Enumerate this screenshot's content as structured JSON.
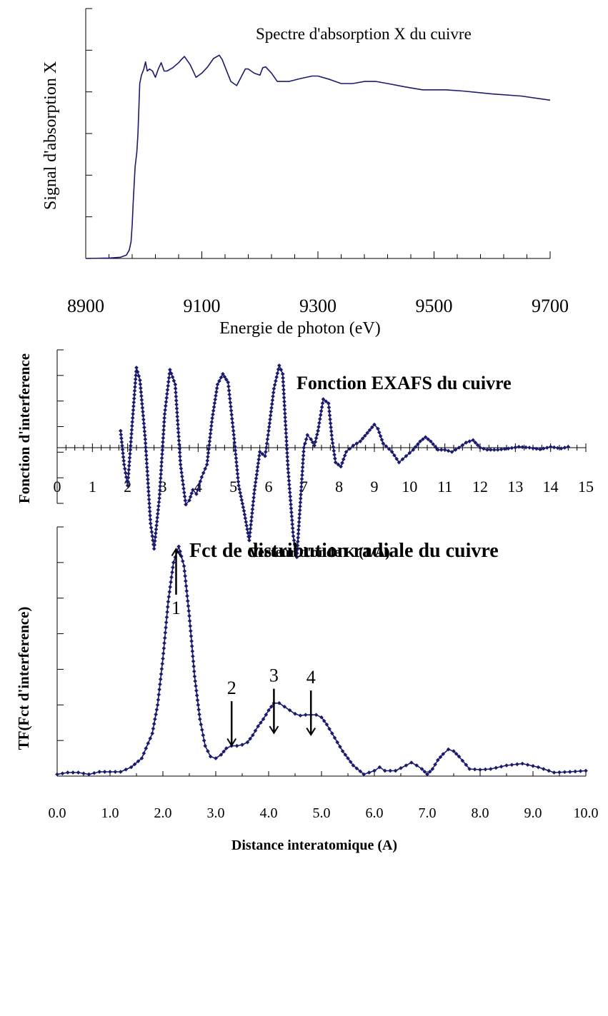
{
  "chart_data": [
    {
      "type": "line",
      "title": "Spectre d'absorption X du cuivre",
      "xlabel": "Energie de photon (eV)",
      "ylabel": "Signal d'absorption X",
      "xlim": [
        8900,
        9700
      ],
      "ylim": [
        0,
        6
      ],
      "x_ticks": [
        "8900",
        "9100",
        "9300",
        "9500",
        "9700"
      ],
      "grid": false,
      "markers": false,
      "color": "#1a1a6e",
      "series": [
        {
          "x": [
            8900,
            8940,
            8960,
            8970,
            8975,
            8978,
            8980,
            8982,
            8985,
            8988,
            8990,
            8993,
            8996,
            9000,
            9003,
            9006,
            9010,
            9015,
            9020,
            9025,
            9030,
            9035,
            9040,
            9050,
            9060,
            9065,
            9070,
            9080,
            9090,
            9100,
            9110,
            9120,
            9130,
            9135,
            9140,
            9150,
            9160,
            9170,
            9175,
            9180,
            9190,
            9200,
            9205,
            9210,
            9220,
            9230,
            9250,
            9270,
            9290,
            9300,
            9320,
            9340,
            9360,
            9380,
            9400,
            9420,
            9450,
            9480,
            9500,
            9520,
            9550,
            9600,
            9650,
            9700
          ],
          "y": [
            0.0,
            0.01,
            0.03,
            0.08,
            0.2,
            0.4,
            0.8,
            1.4,
            2.2,
            2.55,
            3.0,
            4.2,
            4.4,
            4.55,
            4.72,
            4.5,
            4.55,
            4.5,
            4.35,
            4.55,
            4.7,
            4.5,
            4.5,
            4.58,
            4.7,
            4.78,
            4.85,
            4.65,
            4.35,
            4.45,
            4.6,
            4.8,
            4.88,
            4.78,
            4.6,
            4.25,
            4.15,
            4.42,
            4.55,
            4.55,
            4.45,
            4.4,
            4.58,
            4.6,
            4.45,
            4.25,
            4.25,
            4.32,
            4.38,
            4.38,
            4.3,
            4.2,
            4.2,
            4.25,
            4.25,
            4.2,
            4.12,
            4.05,
            4.05,
            4.05,
            4.02,
            3.95,
            3.9,
            3.8
          ]
        }
      ]
    },
    {
      "type": "line",
      "title": "Fonction EXAFS du cuivre",
      "xlabel": "Vecteur d'onde K (1/A)",
      "ylabel": "Fonction d'interference",
      "xlim": [
        0,
        15
      ],
      "ylim": [
        -3,
        3
      ],
      "x_ticks": [
        "0",
        "1",
        "2",
        "3",
        "4",
        "5",
        "6",
        "7",
        "8",
        "9",
        "10",
        "11",
        "12",
        "13",
        "14",
        "15"
      ],
      "grid": false,
      "markers": true,
      "color": "#1a1a6e",
      "series": [
        {
          "x": [
            1.8,
            1.9,
            2.0,
            2.15,
            2.25,
            2.35,
            2.5,
            2.65,
            2.75,
            2.9,
            3.05,
            3.2,
            3.35,
            3.5,
            3.65,
            3.75,
            3.85,
            3.95,
            4.1,
            4.25,
            4.4,
            4.55,
            4.7,
            4.85,
            5.0,
            5.15,
            5.3,
            5.45,
            5.6,
            5.75,
            5.9,
            6.0,
            6.15,
            6.3,
            6.4,
            6.55,
            6.7,
            6.8,
            6.9,
            7.0,
            7.1,
            7.2,
            7.3,
            7.4,
            7.55,
            7.7,
            7.8,
            7.9,
            8.05,
            8.2,
            8.4,
            8.6,
            8.8,
            9.0,
            9.1,
            9.25,
            9.5,
            9.7,
            9.9,
            10.1,
            10.3,
            10.45,
            10.6,
            10.8,
            11.0,
            11.2,
            11.4,
            11.6,
            11.8,
            12.0,
            12.2,
            12.5,
            12.8,
            13.1,
            13.4,
            13.7,
            14.0,
            14.3,
            14.5
          ],
          "y": [
            0.4,
            -0.4,
            -0.9,
            0.8,
            1.9,
            1.6,
            0.2,
            -1.8,
            -2.4,
            -1.2,
            0.8,
            1.85,
            1.5,
            -0.4,
            -1.35,
            -1.25,
            -1.0,
            -1.1,
            -0.7,
            -0.4,
            0.7,
            1.5,
            1.75,
            1.55,
            0.4,
            -0.9,
            -1.5,
            -2.2,
            -1.0,
            -0.1,
            -0.2,
            0.4,
            1.4,
            1.95,
            1.75,
            -0.5,
            -2.1,
            -2.6,
            -1.3,
            0.0,
            0.3,
            0.2,
            0.05,
            0.4,
            1.15,
            1.05,
            0.2,
            -0.35,
            -0.45,
            -0.1,
            0.05,
            0.15,
            0.35,
            0.55,
            0.45,
            0.1,
            -0.1,
            -0.35,
            -0.2,
            -0.05,
            0.15,
            0.25,
            0.15,
            -0.05,
            -0.05,
            -0.1,
            0.0,
            0.12,
            0.18,
            0.0,
            -0.05,
            -0.05,
            -0.02,
            0.02,
            0.0,
            -0.04,
            0.02,
            -0.02,
            0.02
          ]
        }
      ]
    },
    {
      "type": "line",
      "title": "Fct de distribution radiale du cuivre",
      "xlabel": "Distance interatomique (A)",
      "ylabel": "TF(Fct d'interference)",
      "xlim": [
        0,
        10
      ],
      "ylim": [
        0,
        7
      ],
      "x_ticks": [
        "0.0",
        "1.0",
        "2.0",
        "3.0",
        "4.0",
        "5.0",
        "6.0",
        "7.0",
        "8.0",
        "9.0",
        "10.0"
      ],
      "grid": false,
      "markers": true,
      "color": "#1a1a6e",
      "annotations": [
        {
          "label": "1",
          "x": 2.25,
          "y": 6.5,
          "direction": "up"
        },
        {
          "label": "2",
          "x": 3.3,
          "y": 0.7,
          "direction": "down"
        },
        {
          "label": "3",
          "x": 4.1,
          "y": 1.05,
          "direction": "down"
        },
        {
          "label": "4",
          "x": 4.8,
          "y": 1.0,
          "direction": "down"
        }
      ],
      "series": [
        {
          "x": [
            0.0,
            0.2,
            0.4,
            0.6,
            0.8,
            1.0,
            1.2,
            1.4,
            1.6,
            1.8,
            1.9,
            2.0,
            2.1,
            2.2,
            2.3,
            2.4,
            2.5,
            2.6,
            2.7,
            2.8,
            2.9,
            3.0,
            3.1,
            3.2,
            3.3,
            3.4,
            3.5,
            3.6,
            3.7,
            3.8,
            3.9,
            4.0,
            4.1,
            4.2,
            4.3,
            4.4,
            4.5,
            4.6,
            4.7,
            4.8,
            4.9,
            5.0,
            5.1,
            5.2,
            5.4,
            5.6,
            5.8,
            6.0,
            6.1,
            6.2,
            6.4,
            6.6,
            6.7,
            6.8,
            6.9,
            7.0,
            7.1,
            7.2,
            7.3,
            7.4,
            7.5,
            7.6,
            7.8,
            8.0,
            8.2,
            8.5,
            8.8,
            9.1,
            9.4,
            9.7,
            10.0
          ],
          "y": [
            0.05,
            0.1,
            0.1,
            0.05,
            0.12,
            0.12,
            0.12,
            0.25,
            0.5,
            1.2,
            2.0,
            3.3,
            4.9,
            6.0,
            6.45,
            5.9,
            4.5,
            2.8,
            1.6,
            0.85,
            0.55,
            0.5,
            0.6,
            0.78,
            0.85,
            0.85,
            0.88,
            0.95,
            1.15,
            1.4,
            1.6,
            1.85,
            2.05,
            2.05,
            1.95,
            1.85,
            1.75,
            1.7,
            1.72,
            1.72,
            1.72,
            1.65,
            1.45,
            1.2,
            0.7,
            0.3,
            0.05,
            0.15,
            0.25,
            0.15,
            0.15,
            0.3,
            0.38,
            0.3,
            0.2,
            0.05,
            0.2,
            0.45,
            0.62,
            0.75,
            0.7,
            0.55,
            0.2,
            0.18,
            0.2,
            0.3,
            0.35,
            0.25,
            0.1,
            0.12,
            0.15
          ]
        }
      ]
    }
  ]
}
